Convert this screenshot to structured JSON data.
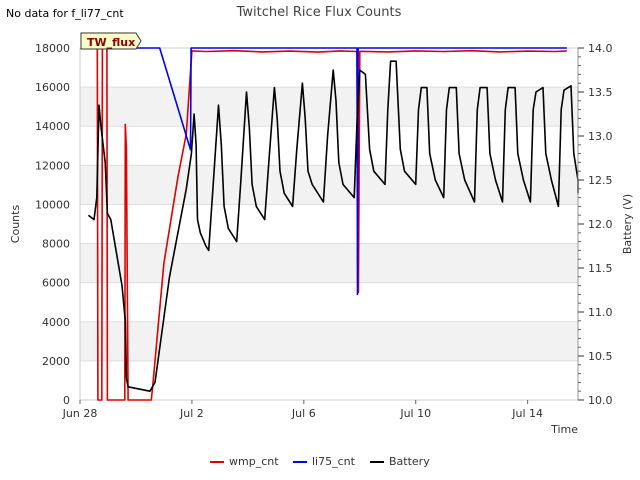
{
  "no_data_note": "No data for f_li77_cnt",
  "tag_label": "TW_flux",
  "chart_data": {
    "type": "line",
    "title": "Twitchel Rice Flux Counts",
    "xlabel": "Time",
    "ylabel": "Counts",
    "y2label": "Battery (V)",
    "xlim": [
      0,
      17.8
    ],
    "ylim": [
      0,
      18000
    ],
    "y2lim": [
      10.0,
      14.0
    ],
    "x_ticks": [
      {
        "x": 0,
        "label": "Jun 28"
      },
      {
        "x": 4,
        "label": "Jul 2"
      },
      {
        "x": 8,
        "label": "Jul 6"
      },
      {
        "x": 12,
        "label": "Jul 10"
      },
      {
        "x": 16,
        "label": "Jul 14"
      }
    ],
    "y_ticks": [
      {
        "v": 0,
        "label": "0"
      },
      {
        "v": 2000,
        "label": "2000"
      },
      {
        "v": 4000,
        "label": "4000"
      },
      {
        "v": 6000,
        "label": "6000"
      },
      {
        "v": 8000,
        "label": "8000"
      },
      {
        "v": 10000,
        "label": "10000"
      },
      {
        "v": 12000,
        "label": "12000"
      },
      {
        "v": 14000,
        "label": "14000"
      },
      {
        "v": 16000,
        "label": "16000"
      },
      {
        "v": 18000,
        "label": "18000"
      }
    ],
    "y2_ticks": [
      {
        "v": 10.0,
        "label": "10.0"
      },
      {
        "v": 10.5,
        "label": "10.5"
      },
      {
        "v": 11.0,
        "label": "11.0"
      },
      {
        "v": 11.5,
        "label": "11.5"
      },
      {
        "v": 12.0,
        "label": "12.0"
      },
      {
        "v": 12.5,
        "label": "12.5"
      },
      {
        "v": 13.0,
        "label": "13.0"
      },
      {
        "v": 13.5,
        "label": "13.5"
      },
      {
        "v": 14.0,
        "label": "14.0"
      }
    ],
    "series": [
      {
        "name": "wmp_cnt",
        "color": "#dd0000",
        "axis": "left",
        "points": [
          [
            0.4,
            18000
          ],
          [
            0.62,
            18000
          ],
          [
            0.64,
            0
          ],
          [
            0.78,
            0
          ],
          [
            0.8,
            18000
          ],
          [
            0.92,
            18000
          ],
          [
            0.96,
            18000
          ],
          [
            0.98,
            0
          ],
          [
            1.6,
            0
          ],
          [
            1.62,
            14100
          ],
          [
            1.66,
            12800
          ],
          [
            1.72,
            0
          ],
          [
            2.55,
            0
          ],
          [
            2.6,
            700
          ],
          [
            3.0,
            7000
          ],
          [
            3.5,
            11400
          ],
          [
            3.8,
            13600
          ],
          [
            4.0,
            17850
          ],
          [
            4.5,
            17820
          ],
          [
            5.5,
            17860
          ],
          [
            6.5,
            17800
          ],
          [
            7.5,
            17840
          ],
          [
            8.5,
            17790
          ],
          [
            9.3,
            17850
          ],
          [
            9.9,
            17820
          ],
          [
            9.95,
            5500
          ],
          [
            10.0,
            17830
          ],
          [
            11.0,
            17800
          ],
          [
            12.0,
            17850
          ],
          [
            13.0,
            17820
          ],
          [
            14.0,
            17860
          ],
          [
            15.0,
            17800
          ],
          [
            16.0,
            17840
          ],
          [
            17.0,
            17820
          ],
          [
            17.4,
            17850
          ]
        ]
      },
      {
        "name": "li75_cnt",
        "color": "#0000ee",
        "axis": "left",
        "points": [
          [
            1.9,
            18000
          ],
          [
            2.85,
            18000
          ],
          [
            3.95,
            12800
          ],
          [
            3.97,
            18000
          ],
          [
            6.0,
            18000
          ],
          [
            8.0,
            18000
          ],
          [
            9.9,
            18000
          ],
          [
            9.92,
            5400
          ],
          [
            9.94,
            18000
          ],
          [
            12.0,
            18000
          ],
          [
            15.0,
            18000
          ],
          [
            17.4,
            18000
          ]
        ]
      },
      {
        "name": "Battery",
        "color": "#000000",
        "axis": "right",
        "points": [
          [
            0.3,
            12.1
          ],
          [
            0.5,
            12.05
          ],
          [
            0.6,
            12.3
          ],
          [
            0.68,
            13.35
          ],
          [
            0.75,
            13.1
          ],
          [
            0.9,
            12.7
          ],
          [
            0.98,
            12.12
          ],
          [
            1.1,
            12.05
          ],
          [
            1.5,
            11.3
          ],
          [
            1.62,
            10.9
          ],
          [
            1.66,
            10.25
          ],
          [
            1.72,
            10.15
          ],
          [
            2.5,
            10.1
          ],
          [
            2.68,
            10.2
          ],
          [
            3.2,
            11.4
          ],
          [
            3.8,
            12.4
          ],
          [
            3.98,
            12.8
          ],
          [
            4.08,
            13.25
          ],
          [
            4.15,
            12.9
          ],
          [
            4.2,
            12.05
          ],
          [
            4.3,
            11.9
          ],
          [
            4.5,
            11.75
          ],
          [
            4.6,
            11.7
          ],
          [
            4.75,
            12.4
          ],
          [
            4.95,
            13.35
          ],
          [
            5.05,
            12.9
          ],
          [
            5.15,
            12.2
          ],
          [
            5.3,
            11.95
          ],
          [
            5.6,
            11.8
          ],
          [
            5.75,
            12.5
          ],
          [
            5.95,
            13.5
          ],
          [
            6.05,
            13.1
          ],
          [
            6.15,
            12.45
          ],
          [
            6.3,
            12.2
          ],
          [
            6.6,
            12.05
          ],
          [
            6.75,
            12.7
          ],
          [
            6.95,
            13.55
          ],
          [
            7.05,
            13.2
          ],
          [
            7.15,
            12.6
          ],
          [
            7.3,
            12.35
          ],
          [
            7.6,
            12.2
          ],
          [
            7.75,
            12.85
          ],
          [
            7.95,
            13.6
          ],
          [
            8.05,
            13.2
          ],
          [
            8.15,
            12.6
          ],
          [
            8.3,
            12.45
          ],
          [
            8.7,
            12.25
          ],
          [
            8.85,
            13.0
          ],
          [
            9.05,
            13.75
          ],
          [
            9.15,
            13.4
          ],
          [
            9.25,
            12.7
          ],
          [
            9.4,
            12.45
          ],
          [
            9.8,
            12.3
          ],
          [
            9.9,
            13.15
          ],
          [
            10.0,
            13.75
          ],
          [
            10.2,
            13.7
          ],
          [
            10.35,
            12.85
          ],
          [
            10.5,
            12.6
          ],
          [
            10.9,
            12.45
          ],
          [
            11.0,
            13.3
          ],
          [
            11.1,
            13.85
          ],
          [
            11.3,
            13.85
          ],
          [
            11.45,
            12.85
          ],
          [
            11.6,
            12.6
          ],
          [
            12.0,
            12.45
          ],
          [
            12.1,
            13.3
          ],
          [
            12.2,
            13.55
          ],
          [
            12.4,
            13.55
          ],
          [
            12.5,
            12.8
          ],
          [
            12.7,
            12.5
          ],
          [
            13.0,
            12.3
          ],
          [
            13.1,
            13.3
          ],
          [
            13.2,
            13.55
          ],
          [
            13.45,
            13.55
          ],
          [
            13.55,
            12.8
          ],
          [
            13.75,
            12.5
          ],
          [
            14.1,
            12.25
          ],
          [
            14.2,
            13.3
          ],
          [
            14.3,
            13.55
          ],
          [
            14.55,
            13.55
          ],
          [
            14.65,
            12.8
          ],
          [
            14.85,
            12.5
          ],
          [
            15.1,
            12.25
          ],
          [
            15.2,
            13.3
          ],
          [
            15.3,
            13.55
          ],
          [
            15.55,
            13.55
          ],
          [
            15.65,
            12.8
          ],
          [
            15.85,
            12.5
          ],
          [
            16.1,
            12.25
          ],
          [
            16.2,
            13.3
          ],
          [
            16.3,
            13.5
          ],
          [
            16.55,
            13.55
          ],
          [
            16.65,
            12.8
          ],
          [
            16.85,
            12.5
          ],
          [
            17.1,
            12.2
          ],
          [
            17.2,
            13.3
          ],
          [
            17.3,
            13.52
          ],
          [
            17.55,
            13.57
          ],
          [
            17.65,
            12.8
          ],
          [
            17.8,
            12.5
          ],
          [
            17.9,
            12.35
          ]
        ]
      }
    ]
  }
}
